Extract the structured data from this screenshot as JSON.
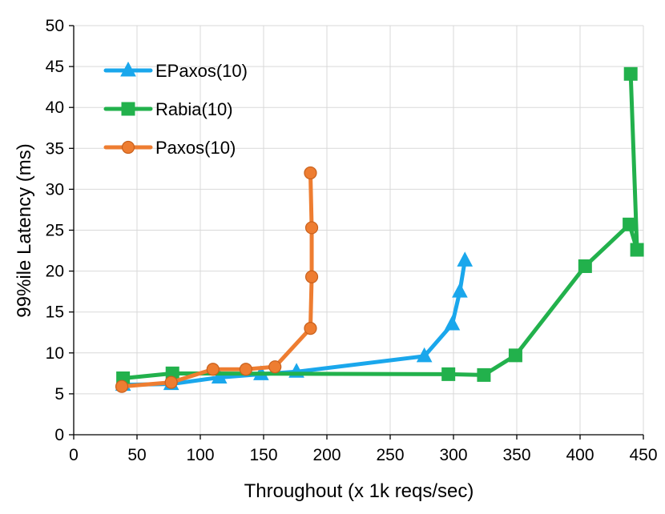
{
  "chart_data": {
    "type": "line",
    "title": "",
    "xlabel": "Throughout (x 1k reqs/sec)",
    "ylabel": "99%ile Latency (ms)",
    "xlim": [
      0,
      450
    ],
    "ylim": [
      0,
      50
    ],
    "xticks": [
      0,
      50,
      100,
      150,
      200,
      250,
      300,
      350,
      400,
      450
    ],
    "yticks": [
      0,
      5,
      10,
      15,
      20,
      25,
      30,
      35,
      40,
      45,
      50
    ],
    "grid": true,
    "legend_position": "top-left",
    "series": [
      {
        "name": "EPaxos(10)",
        "color": "#1aa7ec",
        "marker": "triangle",
        "points": [
          [
            39,
            6.1
          ],
          [
            77,
            6.2
          ],
          [
            115,
            7.0
          ],
          [
            148,
            7.4
          ],
          [
            176,
            7.7
          ],
          [
            277,
            9.6
          ],
          [
            299,
            13.5
          ],
          [
            305,
            17.5
          ],
          [
            309,
            21.3
          ]
        ]
      },
      {
        "name": "Rabia(10)",
        "color": "#22b14c",
        "marker": "square",
        "points": [
          [
            39,
            6.9
          ],
          [
            78,
            7.5
          ],
          [
            296,
            7.4
          ],
          [
            324,
            7.3
          ],
          [
            349,
            9.7
          ],
          [
            404,
            20.6
          ],
          [
            439,
            25.7
          ],
          [
            445,
            22.6
          ],
          [
            440,
            44.1
          ]
        ]
      },
      {
        "name": "Paxos(10)",
        "color": "#ee7d31",
        "marker": "circle",
        "points": [
          [
            38,
            5.9
          ],
          [
            77,
            6.4
          ],
          [
            110,
            8.0
          ],
          [
            136,
            8.0
          ],
          [
            159,
            8.3
          ],
          [
            187,
            13.0
          ],
          [
            188,
            19.3
          ],
          [
            188,
            25.3
          ],
          [
            187,
            32.0
          ]
        ]
      }
    ]
  }
}
